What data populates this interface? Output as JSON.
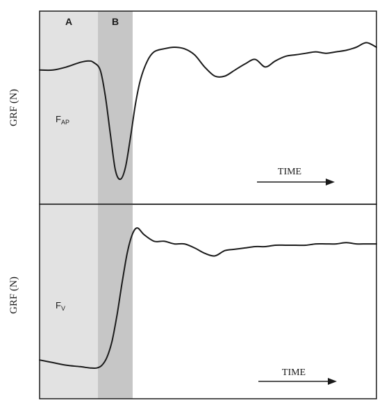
{
  "chart_data": [
    {
      "type": "line",
      "ylabel": "GRF (N)",
      "series_label": {
        "main": "F",
        "sub": "AP"
      },
      "phase_labels": [
        "A",
        "B"
      ],
      "time_label": "TIME",
      "colors": {
        "phase_a": "#e2e2e2",
        "phase_b": "#c6c6c6",
        "trace": "#1a1a1a"
      },
      "x": [
        0.0,
        0.04,
        0.08,
        0.12,
        0.145,
        0.16,
        0.18,
        0.195,
        0.21,
        0.225,
        0.24,
        0.255,
        0.27,
        0.285,
        0.3,
        0.32,
        0.34,
        0.37,
        0.4,
        0.43,
        0.46,
        0.49,
        0.52,
        0.55,
        0.58,
        0.61,
        0.64,
        0.67,
        0.7,
        0.73,
        0.76,
        0.79,
        0.82,
        0.85,
        0.88,
        0.91,
        0.94,
        0.97,
        1.0
      ],
      "values": [
        0.72,
        0.72,
        0.74,
        0.77,
        0.78,
        0.77,
        0.72,
        0.55,
        0.3,
        0.06,
        0.0,
        0.08,
        0.28,
        0.5,
        0.66,
        0.78,
        0.84,
        0.86,
        0.87,
        0.86,
        0.82,
        0.74,
        0.68,
        0.68,
        0.72,
        0.76,
        0.79,
        0.74,
        0.78,
        0.81,
        0.82,
        0.83,
        0.84,
        0.83,
        0.84,
        0.85,
        0.87,
        0.9,
        0.87
      ]
    },
    {
      "type": "line",
      "ylabel": "GRF (N)",
      "series_label": {
        "main": "F",
        "sub": "V"
      },
      "time_label": "TIME",
      "colors": {
        "phase_a": "#e2e2e2",
        "phase_b": "#c6c6c6",
        "trace": "#1a1a1a"
      },
      "x": [
        0.0,
        0.04,
        0.08,
        0.12,
        0.15,
        0.17,
        0.185,
        0.2,
        0.215,
        0.23,
        0.245,
        0.26,
        0.275,
        0.29,
        0.31,
        0.34,
        0.37,
        0.4,
        0.43,
        0.46,
        0.49,
        0.52,
        0.55,
        0.58,
        0.61,
        0.64,
        0.67,
        0.7,
        0.73,
        0.76,
        0.79,
        0.82,
        0.85,
        0.88,
        0.91,
        0.94,
        0.97,
        1.0
      ],
      "values": [
        0.02,
        0.0,
        -0.02,
        -0.03,
        -0.04,
        -0.04,
        -0.02,
        0.04,
        0.16,
        0.36,
        0.6,
        0.82,
        0.96,
        1.01,
        0.96,
        0.91,
        0.91,
        0.89,
        0.89,
        0.86,
        0.82,
        0.8,
        0.84,
        0.85,
        0.86,
        0.87,
        0.87,
        0.88,
        0.88,
        0.88,
        0.88,
        0.89,
        0.89,
        0.89,
        0.9,
        0.89,
        0.89,
        0.89
      ]
    }
  ]
}
